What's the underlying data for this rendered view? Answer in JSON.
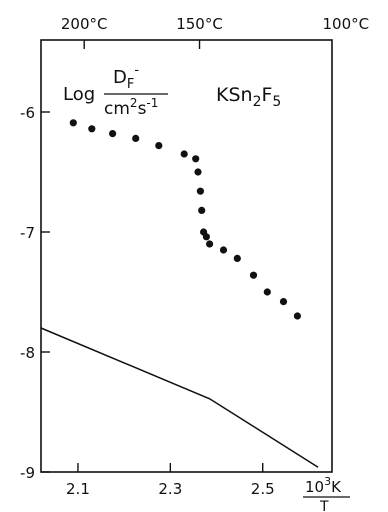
{
  "chart_data": {
    "type": "scatter",
    "xlim": [
      2.02,
      2.65
    ],
    "ylim": [
      -9,
      -5.4
    ],
    "x_ticks": [
      {
        "value": 2.1,
        "label": "2.1"
      },
      {
        "value": 2.3,
        "label": "2.3"
      },
      {
        "value": 2.5,
        "label": "2.5"
      }
    ],
    "y_ticks": [
      {
        "value": -6,
        "label": "-6"
      },
      {
        "value": -7,
        "label": "-7"
      },
      {
        "value": -8,
        "label": "-8"
      },
      {
        "value": -9,
        "label": "-9"
      }
    ],
    "top_axis": {
      "ticks": [
        {
          "value": 2.1135,
          "label": "200°C"
        },
        {
          "value": 2.3632,
          "label": "150°C"
        },
        {
          "value": 2.6799,
          "label": "100°C"
        }
      ]
    },
    "xlabel": {
      "num_base": "10",
      "num_sup": "3",
      "num_unit": "K",
      "den": "T"
    },
    "ylabel": {
      "prefix": "Log",
      "num_base": "D",
      "num_sub": "F",
      "num_sup": "-",
      "den_base": "cm",
      "den_sup1": "2",
      "den_mid": "s",
      "den_sup2": "-1"
    },
    "compound": {
      "part1": "KSn",
      "sub1": "2",
      "part2": "F",
      "sub2": "5"
    },
    "series": [
      {
        "type": "scatter",
        "x": [
          2.09,
          2.13,
          2.175,
          2.225,
          2.275,
          2.33,
          2.355,
          2.36,
          2.365,
          2.368,
          2.372,
          2.378,
          2.385,
          2.415,
          2.445,
          2.48,
          2.51,
          2.545,
          2.575
        ],
        "y": [
          -6.09,
          -6.14,
          -6.18,
          -6.22,
          -6.28,
          -6.35,
          -6.39,
          -6.5,
          -6.66,
          -6.82,
          -7.0,
          -7.04,
          -7.1,
          -7.15,
          -7.22,
          -7.36,
          -7.5,
          -7.58,
          -7.7
        ]
      },
      {
        "type": "line",
        "x": [
          2.02,
          2.385,
          2.62
        ],
        "y": [
          -7.8,
          -8.39,
          -8.96
        ]
      }
    ]
  }
}
